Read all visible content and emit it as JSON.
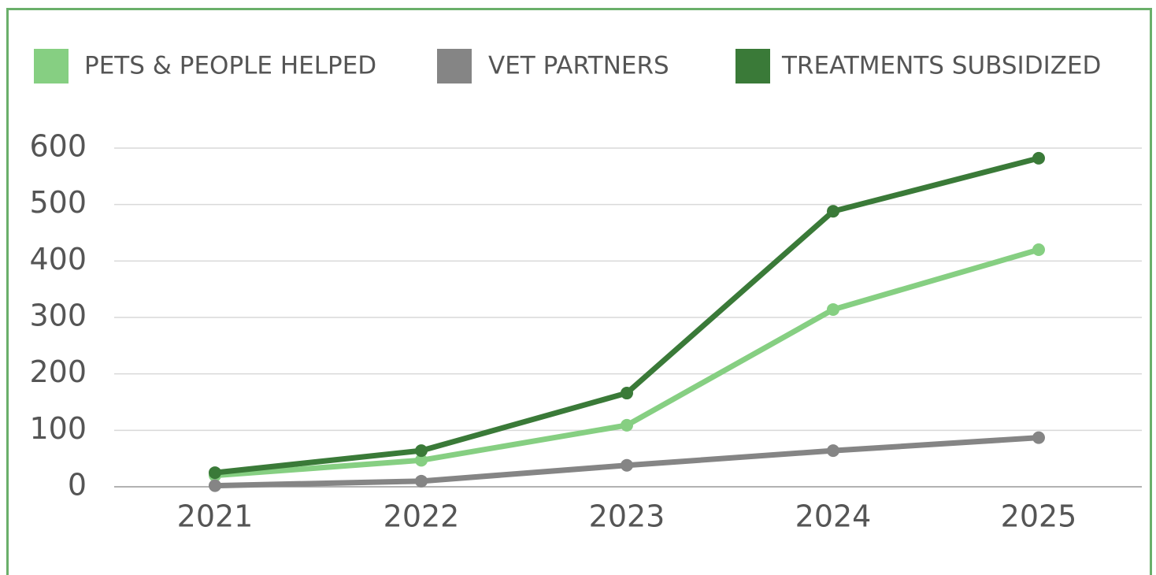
{
  "chart_data": {
    "type": "line",
    "categories": [
      "2021",
      "2022",
      "2023",
      "2024",
      "2025"
    ],
    "series": [
      {
        "name": "PETS & PEOPLE HELPED",
        "color": "#86cf82",
        "values": [
          20,
          47,
          109,
          314,
          420
        ]
      },
      {
        "name": "VET PARTNERS",
        "color": "#858585",
        "values": [
          2,
          10,
          38,
          64,
          87
        ]
      },
      {
        "name": "TREATMENTS SUBSIDIZED",
        "color": "#3a7a38",
        "values": [
          25,
          64,
          166,
          488,
          582
        ]
      }
    ],
    "ylim": [
      0,
      600
    ],
    "yticks": [
      0,
      100,
      200,
      300,
      400,
      500,
      600
    ],
    "grid": true,
    "legend": "top"
  }
}
